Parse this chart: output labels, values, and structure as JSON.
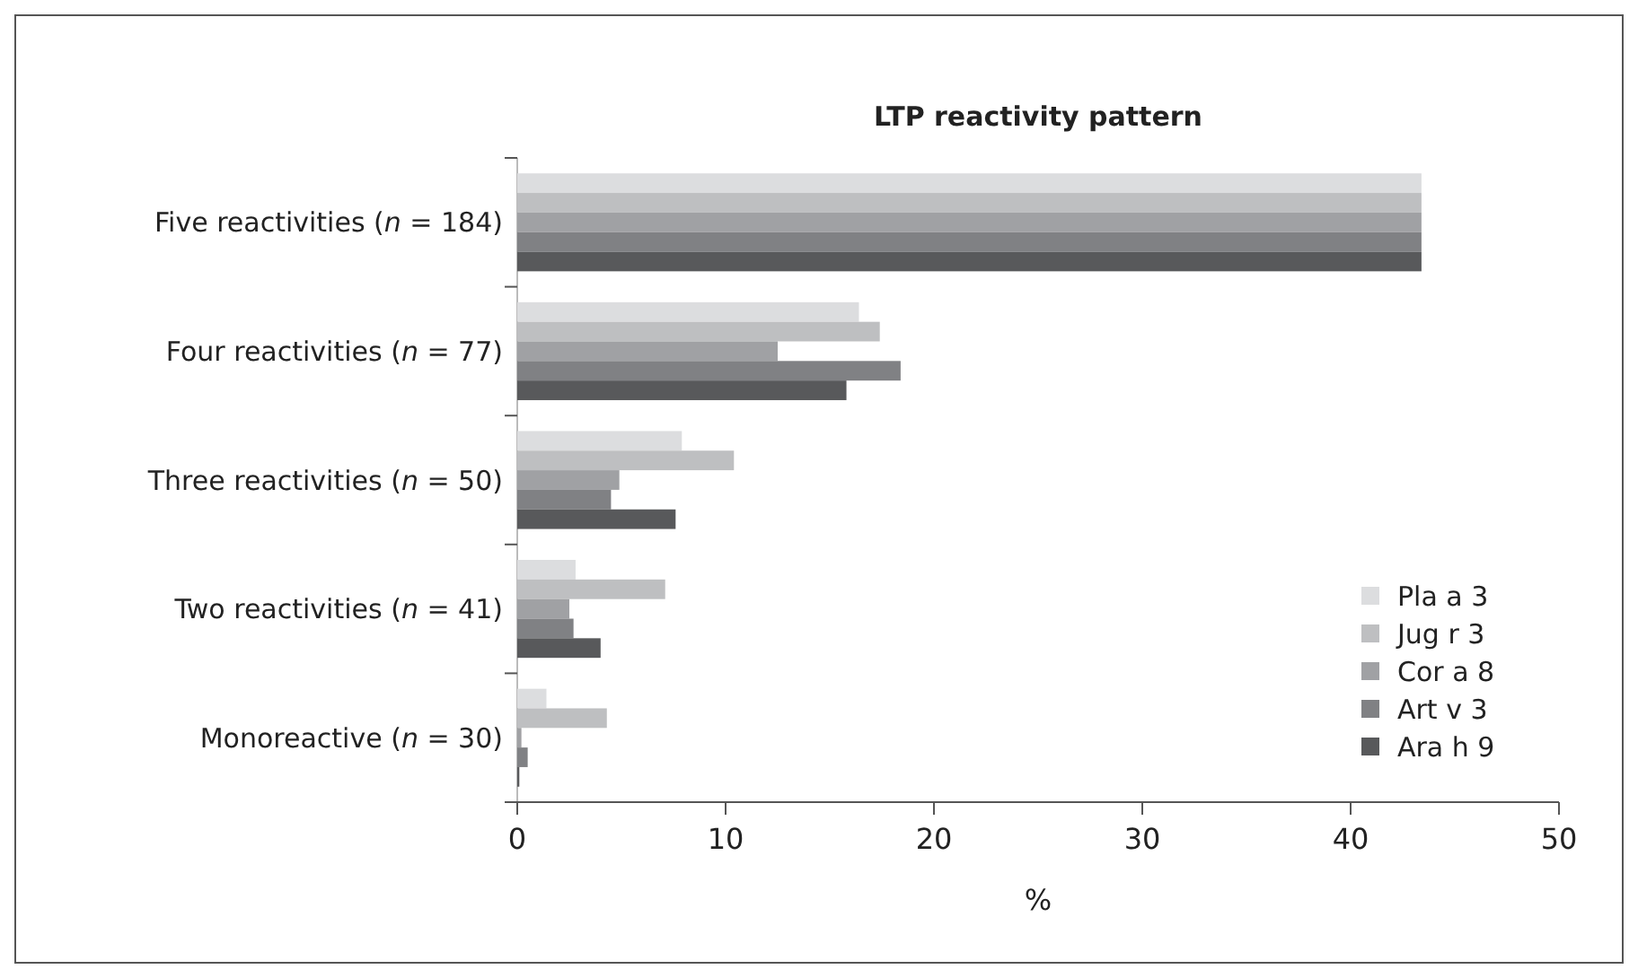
{
  "chart_data": {
    "type": "bar",
    "orientation": "horizontal",
    "title": "LTP reactivity pattern",
    "xlabel": "%",
    "categories": [
      "Five reactivities (n = 184)",
      "Four reactivities (n = 77)",
      "Three reactivities (n = 50)",
      "Two reactivities (n = 41)",
      "Monoreactive (n = 30)"
    ],
    "series": [
      {
        "name": "Pla a 3",
        "color": "#dcdddf",
        "values": [
          43.4,
          16.4,
          7.9,
          2.8,
          1.4
        ]
      },
      {
        "name": "Jug r 3",
        "color": "#bebfc1",
        "values": [
          43.4,
          17.4,
          10.4,
          7.1,
          4.3
        ]
      },
      {
        "name": "Cor a 8",
        "color": "#a0a1a4",
        "values": [
          43.4,
          12.5,
          4.9,
          2.5,
          0.2
        ]
      },
      {
        "name": "Art v 3",
        "color": "#808184",
        "values": [
          43.4,
          18.4,
          4.5,
          2.7,
          0.5
        ]
      },
      {
        "name": "Ara h 9",
        "color": "#58595b",
        "values": [
          43.4,
          15.8,
          7.6,
          4.0,
          0.1
        ]
      }
    ],
    "xlim": [
      0,
      50
    ],
    "xticks": [
      0,
      10,
      20,
      30,
      40,
      50
    ],
    "grid": false,
    "legend": "bottom right"
  }
}
